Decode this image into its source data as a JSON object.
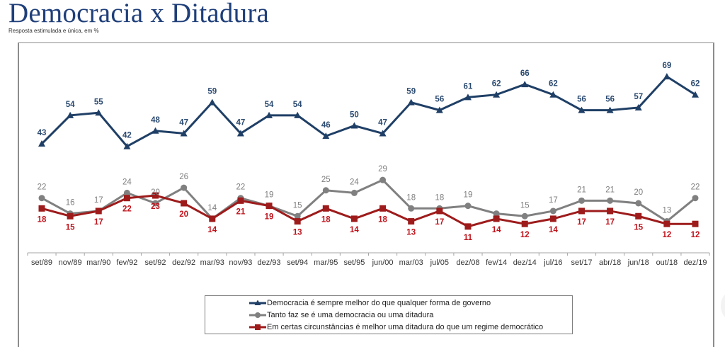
{
  "header": {
    "title": "Democracia x Ditadura",
    "subtitle": "Resposta estimulada e única, em %"
  },
  "chart_data": {
    "type": "line",
    "title": "Democracia x Ditadura",
    "subtitle": "Resposta estimulada e única, em %",
    "xlabel": "",
    "ylabel": "",
    "ylim": [
      0,
      75
    ],
    "grid": false,
    "legend_position": "bottom-center",
    "categories": [
      "set/89",
      "nov/89",
      "mar/90",
      "fev/92",
      "set/92",
      "dez/92",
      "mar/93",
      "nov/93",
      "dez/93",
      "set/94",
      "mar/95",
      "set/95",
      "jun/00",
      "mar/03",
      "jul/05",
      "dez/08",
      "fev/14",
      "dez/14",
      "jul/16",
      "set/17",
      "abr/18",
      "jun/18",
      "out/18",
      "dez/19"
    ],
    "series": [
      {
        "name": "Democracia é sempre melhor do que qualquer forma de governo",
        "color": "#1f3f66",
        "marker": "triangle",
        "label_position": "above",
        "values": [
          43,
          54,
          55,
          42,
          48,
          47,
          59,
          47,
          54,
          54,
          46,
          50,
          47,
          59,
          56,
          61,
          62,
          66,
          62,
          56,
          56,
          57,
          69,
          62
        ],
        "labels": [
          "43",
          "54",
          "55",
          "42",
          "48",
          "47",
          "59",
          "47",
          "54",
          "54",
          "46",
          "50",
          "47",
          "59",
          "56",
          "61",
          "62",
          "66",
          "62",
          "56",
          "56",
          "57",
          "69",
          "62"
        ]
      },
      {
        "name": "Tanto faz se é uma democracia ou uma ditadura",
        "color": "#808080",
        "marker": "circle",
        "label_position": "above",
        "values": [
          22,
          16,
          17,
          24,
          20,
          26,
          14,
          22,
          19,
          15,
          25,
          24,
          29,
          18,
          18,
          19,
          16,
          15,
          17,
          21,
          21,
          20,
          13,
          22
        ],
        "labels": [
          "22",
          "16",
          "17",
          "24",
          "20",
          "26",
          "14",
          "22",
          "19",
          "15",
          "25",
          "24",
          "29",
          "18",
          "18",
          "19",
          null,
          "15",
          "17",
          "21",
          "21",
          "20",
          "13",
          "22"
        ]
      },
      {
        "name": "Em certas circunstâncias é melhor uma ditadura do que um regime democrático",
        "color": "#9e1b1b",
        "label_color": "#c0141c",
        "marker": "square",
        "label_position": "below",
        "values": [
          18,
          15,
          17,
          22,
          23,
          20,
          14,
          21,
          19,
          13,
          18,
          14,
          18,
          13,
          17,
          11,
          14,
          12,
          14,
          17,
          17,
          15,
          12,
          12
        ],
        "labels": [
          "18",
          "15",
          "17",
          "22",
          "23",
          "20",
          "14",
          "21",
          "19",
          "13",
          "18",
          "14",
          "18",
          "13",
          "17",
          "11",
          "14",
          "12",
          "14",
          "17",
          "17",
          "15",
          "12",
          "12"
        ]
      }
    ]
  }
}
